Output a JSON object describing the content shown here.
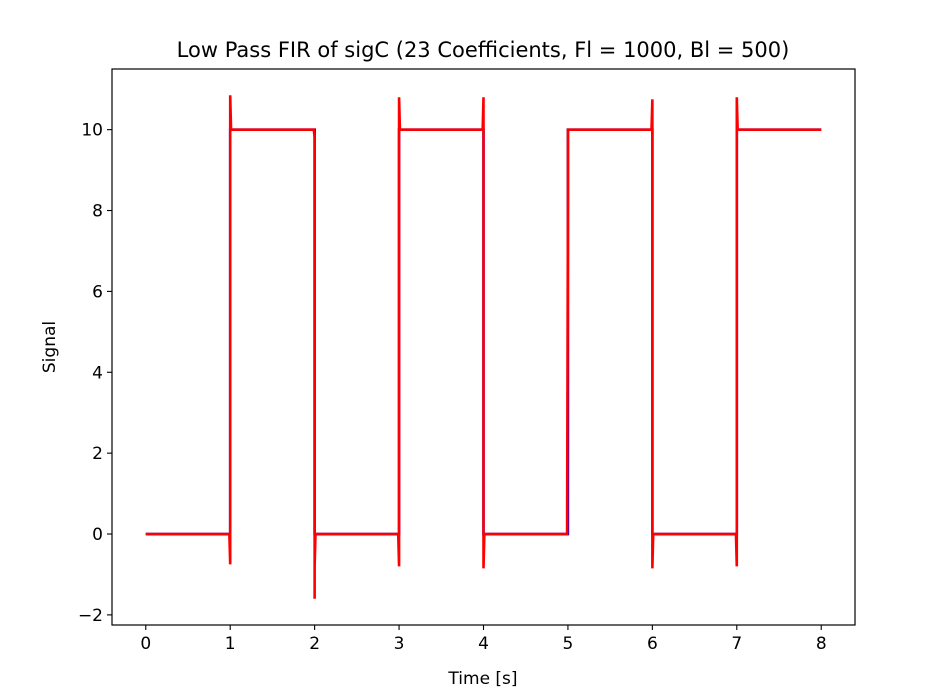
{
  "chart_data": {
    "type": "line",
    "title": "Low Pass FIR of sigC (23 Coefficients, Fl = 1000, Bl = 500)",
    "xlabel": "Time [s]",
    "ylabel": "Signal",
    "xlim": [
      -0.4,
      8.4
    ],
    "ylim": [
      -2.25,
      11.5
    ],
    "xticks": [
      0,
      1,
      2,
      3,
      4,
      5,
      6,
      7,
      8
    ],
    "xtick_labels": [
      "0",
      "1",
      "2",
      "3",
      "4",
      "5",
      "6",
      "7",
      "8"
    ],
    "yticks": [
      -2,
      0,
      2,
      4,
      6,
      8,
      10
    ],
    "ytick_labels": [
      "−2",
      "0",
      "2",
      "4",
      "6",
      "8",
      "10"
    ],
    "grid": false,
    "legend": "none",
    "series": [
      {
        "color": "#0000ff",
        "x": [
          0,
          1,
          1,
          2,
          2,
          3,
          3,
          4,
          4,
          5,
          5,
          6,
          6,
          7,
          7,
          8
        ],
        "y": [
          0,
          0,
          10,
          10,
          0,
          0,
          10,
          10,
          0,
          0,
          10,
          10,
          0,
          0,
          10,
          10
        ]
      },
      {
        "color": "#ff0000",
        "x": [
          0,
          0.99,
          1.0,
          1.0,
          1.01,
          1.01,
          1.99,
          2.0,
          2.0,
          2.0,
          2.01,
          2.01,
          2.99,
          3.0,
          3.0,
          3.01,
          3.01,
          3.99,
          4.0,
          4.0,
          4.01,
          4.01,
          4.99,
          5.0,
          5.0,
          5.0,
          5.01,
          5.01,
          5.99,
          6.0,
          6.0,
          6.01,
          6.01,
          6.99,
          7.0,
          7.0,
          7.01,
          7.01,
          8.0
        ],
        "y": [
          0,
          0,
          -0.75,
          10.85,
          10.0,
          10,
          10,
          9.8,
          -1.6,
          -0.8,
          0,
          0,
          0,
          -0.8,
          10.8,
          10.0,
          10,
          10,
          10.8,
          -0.85,
          0.0,
          0,
          0,
          8.2,
          10.0,
          10.0,
          10.0,
          10,
          10,
          10.75,
          -0.85,
          0.0,
          0,
          0,
          -0.8,
          10.8,
          10.0,
          10,
          10
        ]
      }
    ]
  }
}
